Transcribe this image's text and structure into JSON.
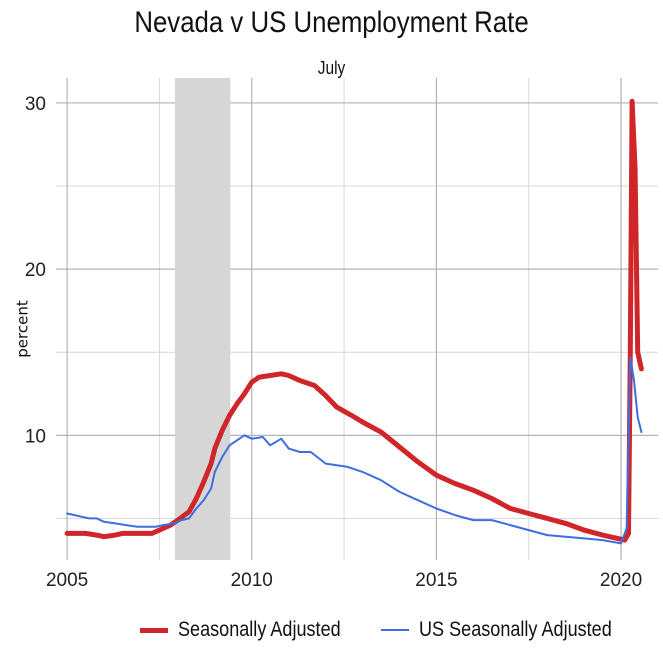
{
  "chart_data": {
    "type": "line",
    "title": "Nevada v US Unemployment Rate",
    "subtitle": "July",
    "xlabel": "",
    "ylabel": "percent",
    "xlim": [
      2004.7,
      2021.0
    ],
    "ylim": [
      2.5,
      31.5
    ],
    "x_ticks": [
      "2005",
      "2010",
      "2015",
      "2020"
    ],
    "y_ticks": [
      "10",
      "20",
      "30"
    ],
    "grid": true,
    "legend_position": "bottom",
    "recession_shading": [
      2007.92,
      2009.42
    ],
    "series": [
      {
        "name": "Seasonally Adjusted",
        "color": "#d0262a",
        "points": [
          [
            2005.0,
            4.1
          ],
          [
            2005.5,
            4.1
          ],
          [
            2005.8,
            4.0
          ],
          [
            2006.0,
            3.9
          ],
          [
            2006.3,
            4.0
          ],
          [
            2006.5,
            4.1
          ],
          [
            2007.0,
            4.1
          ],
          [
            2007.3,
            4.1
          ],
          [
            2007.5,
            4.3
          ],
          [
            2007.8,
            4.6
          ],
          [
            2008.0,
            4.9
          ],
          [
            2008.3,
            5.4
          ],
          [
            2008.5,
            6.2
          ],
          [
            2008.7,
            7.2
          ],
          [
            2008.9,
            8.3
          ],
          [
            2009.0,
            9.2
          ],
          [
            2009.2,
            10.3
          ],
          [
            2009.4,
            11.2
          ],
          [
            2009.6,
            11.9
          ],
          [
            2009.8,
            12.5
          ],
          [
            2010.0,
            13.2
          ],
          [
            2010.2,
            13.5
          ],
          [
            2010.5,
            13.6
          ],
          [
            2010.8,
            13.7
          ],
          [
            2011.0,
            13.6
          ],
          [
            2011.3,
            13.3
          ],
          [
            2011.7,
            13.0
          ],
          [
            2012.0,
            12.4
          ],
          [
            2012.3,
            11.7
          ],
          [
            2012.7,
            11.2
          ],
          [
            2013.0,
            10.8
          ],
          [
            2013.5,
            10.2
          ],
          [
            2014.0,
            9.3
          ],
          [
            2014.5,
            8.4
          ],
          [
            2015.0,
            7.6
          ],
          [
            2015.5,
            7.1
          ],
          [
            2016.0,
            6.7
          ],
          [
            2016.5,
            6.2
          ],
          [
            2017.0,
            5.6
          ],
          [
            2017.5,
            5.3
          ],
          [
            2018.0,
            5.0
          ],
          [
            2018.5,
            4.7
          ],
          [
            2019.0,
            4.3
          ],
          [
            2019.5,
            4.0
          ],
          [
            2019.9,
            3.8
          ],
          [
            2020.1,
            3.7
          ],
          [
            2020.2,
            4.1
          ],
          [
            2020.25,
            15.0
          ],
          [
            2020.3,
            30.1
          ],
          [
            2020.38,
            26.0
          ],
          [
            2020.45,
            15.0
          ],
          [
            2020.55,
            14.0
          ]
        ]
      },
      {
        "name": "US Seasonally Adjusted",
        "color": "#3d6fe0",
        "points": [
          [
            2005.0,
            5.3
          ],
          [
            2005.2,
            5.2
          ],
          [
            2005.4,
            5.1
          ],
          [
            2005.6,
            5.0
          ],
          [
            2005.8,
            5.0
          ],
          [
            2006.0,
            4.8
          ],
          [
            2006.3,
            4.7
          ],
          [
            2006.6,
            4.6
          ],
          [
            2006.9,
            4.5
          ],
          [
            2007.1,
            4.5
          ],
          [
            2007.4,
            4.5
          ],
          [
            2007.6,
            4.6
          ],
          [
            2007.9,
            4.7
          ],
          [
            2008.1,
            4.9
          ],
          [
            2008.3,
            5.0
          ],
          [
            2008.5,
            5.6
          ],
          [
            2008.7,
            6.1
          ],
          [
            2008.9,
            6.8
          ],
          [
            2009.0,
            7.8
          ],
          [
            2009.2,
            8.7
          ],
          [
            2009.4,
            9.4
          ],
          [
            2009.6,
            9.7
          ],
          [
            2009.8,
            10.0
          ],
          [
            2010.0,
            9.8
          ],
          [
            2010.3,
            9.9
          ],
          [
            2010.5,
            9.4
          ],
          [
            2010.8,
            9.8
          ],
          [
            2011.0,
            9.2
          ],
          [
            2011.3,
            9.0
          ],
          [
            2011.6,
            9.0
          ],
          [
            2012.0,
            8.3
          ],
          [
            2012.3,
            8.2
          ],
          [
            2012.6,
            8.1
          ],
          [
            2013.0,
            7.8
          ],
          [
            2013.5,
            7.3
          ],
          [
            2014.0,
            6.6
          ],
          [
            2014.5,
            6.1
          ],
          [
            2015.0,
            5.6
          ],
          [
            2015.5,
            5.2
          ],
          [
            2016.0,
            4.9
          ],
          [
            2016.5,
            4.9
          ],
          [
            2017.0,
            4.6
          ],
          [
            2017.5,
            4.3
          ],
          [
            2018.0,
            4.0
          ],
          [
            2018.5,
            3.9
          ],
          [
            2019.0,
            3.8
          ],
          [
            2019.5,
            3.7
          ],
          [
            2020.0,
            3.5
          ],
          [
            2020.15,
            4.4
          ],
          [
            2020.25,
            14.7
          ],
          [
            2020.35,
            13.3
          ],
          [
            2020.45,
            11.1
          ],
          [
            2020.55,
            10.2
          ]
        ]
      }
    ]
  }
}
